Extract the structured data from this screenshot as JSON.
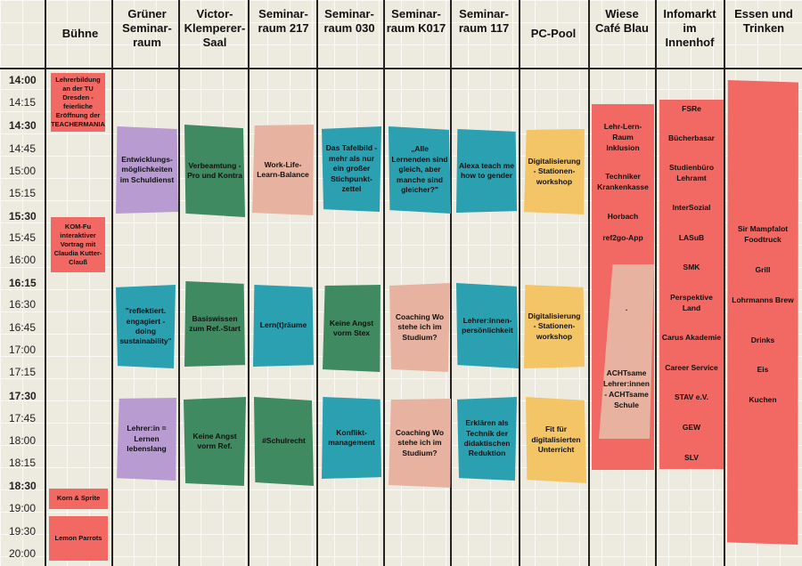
{
  "headers": [
    "Bühne",
    "Grüner Seminar-raum",
    "Victor-Klemperer-Saal",
    "Seminar-raum 217",
    "Seminar-raum 030",
    "Seminar-raum K017",
    "Seminar-raum 117",
    "PC-Pool",
    "Wiese Café Blau",
    "Infomarkt im Innenhof",
    "Essen und Trinken"
  ],
  "times": [
    "14:00",
    "14:15",
    "14:30",
    "14:45",
    "15:00",
    "15:15",
    "15:30",
    "15:45",
    "16:00",
    "16:15",
    "16:30",
    "16:45",
    "17:00",
    "17:15",
    "17:30",
    "17:45",
    "18:00",
    "18:15",
    "18:30",
    "19:00",
    "19:30",
    "20:00"
  ],
  "events": {
    "b1": "Lehrerbildung an der TU Dresden - feierliche Eröffnung der TEACHERMANIA",
    "b2": "KOM-Fu interaktiver Vortrag mit Claudia Kutter-Clauß",
    "b3": "Korn & Sprite",
    "b4": "Lemon Parrots",
    "g1": "Entwicklungs-möglichkeiten im Schuldienst",
    "g2": "\"reflektiert. engagiert - doing sustainability\"",
    "g3": "Lehrer:in = Lernen lebenslang",
    "v1": "Verbeamtung - Pro und Kontra",
    "v2": "Basiswissen zum Ref.-Start",
    "v3": "Keine Angst vorm Ref.",
    "s217a": "Work-Life-Learn-Balance",
    "s217b": "Lern(t)räume",
    "s217c": "#Schulrecht",
    "s030a": "Das Tafelbild - mehr als nur ein großer Stichpunkt-zettel",
    "s030b": "Keine Angst vorm Stex",
    "s030c": "Konflikt-management",
    "k017a": "„Alle Lernenden sind gleich, aber manche sind gleicher?\"",
    "k017b": "Coaching Wo stehe ich im Studium?",
    "k017c": "Coaching Wo stehe ich im Studium?",
    "s117a": "Alexa teach me how to gender",
    "s117b": "Lehrer:innen-persönlichkeit",
    "s117c": "Erklären als Technik der didaktischen Reduktion",
    "pc1": "Digitalisierung - Stationen-workshop",
    "pc2": "Digitalisierung - Stationen-workshop",
    "pc3": "Fit für digitalisierten Unterricht"
  },
  "wiese_items": [
    "Lehr-Lern-Raum Inklusion",
    "Techniker Krankenkasse",
    "Horbach",
    "ref2go-App"
  ],
  "wiese_dot": ".",
  "wiese_inner": "ACHTsame Lehrer:innen - ACHTsame Schule",
  "infomarkt_items": [
    "FSRe",
    "Bücherbasar",
    "Studienbüro Lehramt",
    "InterSozial",
    "LASuB",
    "SMK",
    "Perspektive Land",
    "Carus Akademie",
    "Career Service",
    "STAV e.V.",
    "GEW",
    "SLV"
  ],
  "essen_items": [
    "Sir Mampfalot Foodtruck",
    "Grill",
    "Lohrmanns Brew",
    "Drinks",
    "Eis",
    "Kuchen"
  ],
  "colors": {
    "purple": "#b89bd1",
    "green": "#3f8a61",
    "pink": "#e8b2a0",
    "teal": "#2aa0b0",
    "yellow": "#f3c566",
    "red": "#f26862"
  }
}
